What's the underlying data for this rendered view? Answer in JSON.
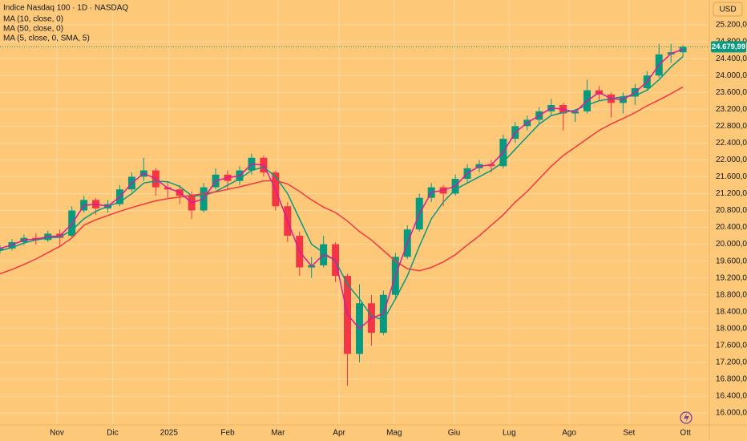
{
  "chart_data": {
    "type": "candlestick",
    "title": "Indice Nasdaq 100 · 1D · NASDAQ",
    "currency": "USD",
    "up_color": "#089981",
    "down_color": "#f23645",
    "ohlc": [
      [
        19850,
        19980,
        19780,
        19900
      ],
      [
        19900,
        20120,
        19850,
        20050
      ],
      [
        20050,
        20230,
        19980,
        20150
      ],
      [
        20150,
        20260,
        19990,
        20100
      ],
      [
        20100,
        20320,
        20050,
        20250
      ],
      [
        20250,
        20350,
        19950,
        20150
      ],
      [
        20200,
        20900,
        20150,
        20800
      ],
      [
        20800,
        21150,
        20750,
        21050
      ],
      [
        21050,
        21100,
        20700,
        20850
      ],
      [
        20850,
        21050,
        20750,
        20950
      ],
      [
        20950,
        21400,
        20900,
        21300
      ],
      [
        21300,
        21700,
        21250,
        21600
      ],
      [
        21600,
        22050,
        21500,
        21750
      ],
      [
        21750,
        21800,
        21150,
        21350
      ],
      [
        21350,
        21500,
        21100,
        21300
      ],
      [
        21300,
        21400,
        20950,
        21150
      ],
      [
        21150,
        21250,
        20600,
        20800
      ],
      [
        20800,
        21450,
        20750,
        21350
      ],
      [
        21350,
        21800,
        21300,
        21650
      ],
      [
        21650,
        21750,
        21300,
        21500
      ],
      [
        21500,
        21850,
        21400,
        21750
      ],
      [
        21750,
        22150,
        21650,
        22050
      ],
      [
        22050,
        22100,
        21600,
        21700
      ],
      [
        21700,
        21750,
        20800,
        20900
      ],
      [
        20900,
        21000,
        20050,
        20200
      ],
      [
        20200,
        20300,
        19250,
        19450
      ],
      [
        19450,
        19700,
        19200,
        19500
      ],
      [
        19500,
        20200,
        19450,
        20000
      ],
      [
        20000,
        20050,
        19100,
        19250
      ],
      [
        19250,
        19300,
        16650,
        17400
      ],
      [
        17400,
        19050,
        17200,
        18600
      ],
      [
        18600,
        18800,
        17600,
        17900
      ],
      [
        17900,
        18900,
        17850,
        18800
      ],
      [
        18800,
        19800,
        18700,
        19700
      ],
      [
        19700,
        20450,
        19650,
        20350
      ],
      [
        20350,
        21200,
        20300,
        21100
      ],
      [
        21100,
        21450,
        21000,
        21350
      ],
      [
        21350,
        21400,
        20900,
        21200
      ],
      [
        21200,
        21650,
        21150,
        21550
      ],
      [
        21550,
        21900,
        21450,
        21800
      ],
      [
        21800,
        22000,
        21700,
        21900
      ],
      [
        21900,
        22000,
        21700,
        21850
      ],
      [
        21850,
        22600,
        21800,
        22500
      ],
      [
        22500,
        22900,
        22400,
        22800
      ],
      [
        22800,
        23050,
        22700,
        22950
      ],
      [
        22950,
        23250,
        22850,
        23150
      ],
      [
        23150,
        23450,
        23050,
        23300
      ],
      [
        23300,
        23350,
        22700,
        23100
      ],
      [
        23100,
        23200,
        22900,
        23150
      ],
      [
        23150,
        23900,
        23100,
        23650
      ],
      [
        23650,
        23750,
        23400,
        23550
      ],
      [
        23550,
        23600,
        23000,
        23350
      ],
      [
        23350,
        23600,
        23100,
        23500
      ],
      [
        23500,
        23800,
        23300,
        23700
      ],
      [
        23700,
        24100,
        23650,
        24000
      ],
      [
        24000,
        24750,
        23950,
        24500
      ],
      [
        24500,
        24750,
        24300,
        24550
      ],
      [
        24550,
        24720,
        24450,
        24679.99
      ]
    ],
    "series": [
      {
        "name": "MA (10, close, 0)",
        "color": "#089981",
        "values": [
          19850,
          19920,
          20030,
          20100,
          20150,
          20170,
          20330,
          20600,
          20780,
          20900,
          21000,
          21200,
          21450,
          21500,
          21480,
          21370,
          21150,
          21150,
          21250,
          21400,
          21550,
          21750,
          21830,
          21600,
          21200,
          20600,
          20000,
          19800,
          19600,
          19050,
          18700,
          18300,
          18200,
          18700,
          19250,
          19950,
          20600,
          21000,
          21300,
          21450,
          21600,
          21750,
          21950,
          22250,
          22550,
          22850,
          23050,
          23120,
          23180,
          23300,
          23400,
          23450,
          23500,
          23520,
          23650,
          23900,
          24200,
          24450
        ]
      },
      {
        "name": "MA (50, close, 0)",
        "color": "#f23645",
        "values": [
          19300,
          19400,
          19520,
          19650,
          19800,
          19950,
          20150,
          20450,
          20580,
          20680,
          20780,
          20870,
          20950,
          21030,
          21080,
          21120,
          21160,
          21200,
          21240,
          21300,
          21360,
          21430,
          21500,
          21510,
          21430,
          21250,
          21050,
          20880,
          20750,
          20550,
          20300,
          20100,
          19850,
          19600,
          19420,
          19370,
          19450,
          19580,
          19750,
          19980,
          20200,
          20450,
          20700,
          21000,
          21250,
          21550,
          21850,
          22100,
          22300,
          22500,
          22700,
          22850,
          22980,
          23120,
          23280,
          23420,
          23570,
          23730
        ]
      },
      {
        "name": "MA (5, close, 0, SMA, 5)",
        "color": "#d81b9c",
        "values": [
          19900,
          19980,
          20100,
          20120,
          20180,
          20200,
          20480,
          20920,
          20950,
          20900,
          21120,
          21450,
          21680,
          21550,
          21330,
          21230,
          20980,
          21080,
          21500,
          21580,
          21620,
          21900,
          21880,
          21300,
          20550,
          19830,
          19480,
          19750,
          19630,
          18330,
          18000,
          18250,
          18350,
          19250,
          20030,
          20720,
          21230,
          21280,
          21380,
          21680,
          21850,
          21880,
          22180,
          22650,
          22880,
          23050,
          23230,
          23200,
          23130,
          23400,
          23600,
          23450,
          23430,
          23600,
          23850,
          24250,
          24520,
          24620
        ]
      }
    ],
    "last_price": {
      "value": 24679.99,
      "label": "24.679,99"
    },
    "xlim": [
      0,
      59.2
    ],
    "xticks": [
      {
        "value": 4.75,
        "label": "Nov"
      },
      {
        "value": 9.4,
        "label": "Dic"
      },
      {
        "value": 14.1,
        "label": "2025"
      },
      {
        "value": 19,
        "label": "Feb"
      },
      {
        "value": 23.2,
        "label": "Mar"
      },
      {
        "value": 28.3,
        "label": "Apr"
      },
      {
        "value": 32.9,
        "label": "Mag"
      },
      {
        "value": 37.9,
        "label": "Giu"
      },
      {
        "value": 42.5,
        "label": "Lug"
      },
      {
        "value": 47.5,
        "label": "Ago"
      },
      {
        "value": 52.5,
        "label": "Set"
      },
      {
        "value": 57.2,
        "label": "Ott"
      }
    ],
    "ylim": [
      15715,
      25790
    ],
    "yticks": [
      {
        "value": 16000,
        "label": "16.000,00"
      },
      {
        "value": 16400,
        "label": "16.400,00"
      },
      {
        "value": 16800,
        "label": "16.800,00"
      },
      {
        "value": 17200,
        "label": "17.200,00"
      },
      {
        "value": 17600,
        "label": "17.600,00"
      },
      {
        "value": 18000,
        "label": "18.000,00"
      },
      {
        "value": 18400,
        "label": "18.400,00"
      },
      {
        "value": 18800,
        "label": "18.800,00"
      },
      {
        "value": 19200,
        "label": "19.200,00"
      },
      {
        "value": 19600,
        "label": "19.600,00"
      },
      {
        "value": 20000,
        "label": "20.000,00"
      },
      {
        "value": 20400,
        "label": "20.400,00"
      },
      {
        "value": 20800,
        "label": "20.800,00"
      },
      {
        "value": 21200,
        "label": "21.200,00"
      },
      {
        "value": 21600,
        "label": "21.600,00"
      },
      {
        "value": 22000,
        "label": "22.000,00"
      },
      {
        "value": 22400,
        "label": "22.400,00"
      },
      {
        "value": 22800,
        "label": "22.800,00"
      },
      {
        "value": 23200,
        "label": "23.200,00"
      },
      {
        "value": 23600,
        "label": "23.600,00"
      },
      {
        "value": 24000,
        "label": "24.000,00"
      },
      {
        "value": 24400,
        "label": "24.400,00"
      },
      {
        "value": 24800,
        "label": "24.800,00"
      },
      {
        "value": 25200,
        "label": "25.200,00"
      }
    ],
    "grid": true
  }
}
